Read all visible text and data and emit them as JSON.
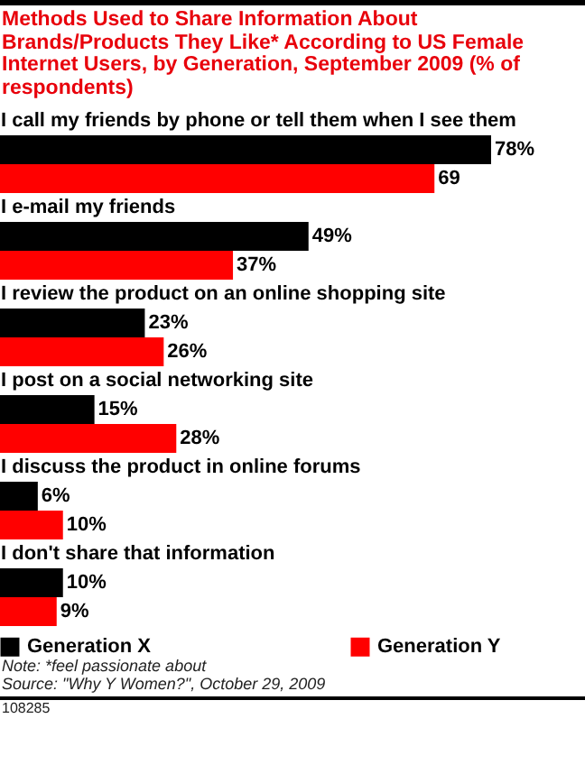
{
  "chart_data": {
    "type": "bar",
    "orientation": "horizontal",
    "title": "Methods Used to Share Information About Brands/Products They Like* According to US Female Internet Users, by Generation, September 2009 (% of respondents)",
    "categories": [
      "I call my friends by phone or tell them when I see them",
      "I e-mail my friends",
      "I review the product on an online shopping site",
      "I post on a social networking site",
      "I discuss the product in online forums",
      "I don't share that information"
    ],
    "series": [
      {
        "name": "Generation X",
        "color": "#000000",
        "values": [
          78,
          49,
          23,
          15,
          6,
          10
        ],
        "value_labels": [
          "78%",
          "49%",
          "23%",
          "15%",
          "6%",
          "10%"
        ]
      },
      {
        "name": "Generation Y",
        "color": "#ff0000",
        "values": [
          69,
          37,
          26,
          28,
          10,
          9
        ],
        "value_labels": [
          "69",
          "37%",
          "26%",
          "28%",
          "10%",
          "9%"
        ]
      }
    ],
    "legend": "bottom",
    "annotations": [
      "Note: *feel passionate about",
      "Source: \"Why Y Women?\", October 29, 2009",
      "108285"
    ]
  }
}
